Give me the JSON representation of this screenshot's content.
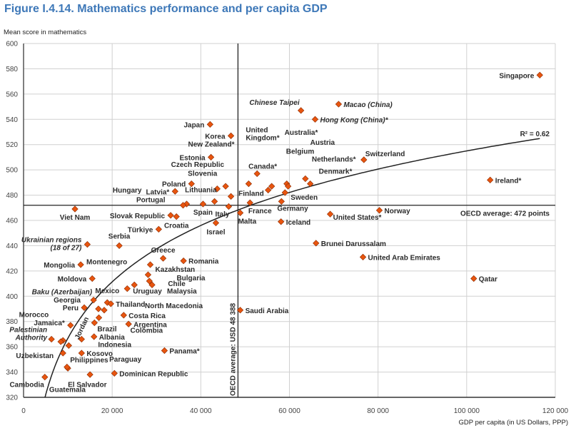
{
  "title": "Figure I.4.14. Mathematics performance and per capita GDP",
  "colors": {
    "title": "#3e78b8",
    "marker": "#e8550f",
    "marker_edge": "#8a2a00",
    "grid": "#d0d0d0"
  },
  "chart_data": {
    "type": "scatter",
    "title": "Figure I.4.14. Mathematics performance and per capita GDP",
    "xlabel": "GDP per capita (in US Dollars, PPP)",
    "ylabel": "Mean score in mathematics",
    "xlim": [
      0,
      120000
    ],
    "ylim": [
      320,
      600
    ],
    "xticks": [
      0,
      20000,
      40000,
      60000,
      80000,
      100000,
      120000
    ],
    "xtick_labels": [
      "0",
      "20 000",
      "40 000",
      "60 000",
      "80 000",
      "100 000",
      "120 000"
    ],
    "yticks": [
      320,
      340,
      360,
      380,
      400,
      420,
      440,
      460,
      480,
      500,
      520,
      540,
      560,
      580,
      600
    ],
    "grid": true,
    "trendline": {
      "type": "logarithmic",
      "label": "R² = 0.62"
    },
    "reference_lines": {
      "oecd_mean_score": 472,
      "oecd_mean_score_label": "OECD average: 472 points",
      "oecd_mean_gdp": 48388,
      "oecd_mean_gdp_label": "OECD average: USD 48 388"
    },
    "points": [
      {
        "name": "Singapore",
        "x": 116500,
        "y": 575
      },
      {
        "name": "Macao (China)",
        "x": 71100,
        "y": 552,
        "italic": true
      },
      {
        "name": "Chinese Taipei",
        "x": 62600,
        "y": 547,
        "italic": true
      },
      {
        "name": "Hong Kong (China)*",
        "x": 65800,
        "y": 540,
        "italic": true
      },
      {
        "name": "Japan",
        "x": 42100,
        "y": 536
      },
      {
        "name": "Korea",
        "x": 46800,
        "y": 527
      },
      {
        "name": "Estonia",
        "x": 42300,
        "y": 510
      },
      {
        "name": "Switzerland",
        "x": 76800,
        "y": 508
      },
      {
        "name": "Ireland*",
        "x": 105300,
        "y": 492
      },
      {
        "name": "Canada*",
        "x": 52700,
        "y": 497
      },
      {
        "name": "Netherlands*",
        "x": 63600,
        "y": 493
      },
      {
        "name": "Denmark*",
        "x": 64700,
        "y": 489
      },
      {
        "name": "Belgium",
        "x": 59400,
        "y": 489
      },
      {
        "name": "Austria",
        "x": 59700,
        "y": 487
      },
      {
        "name": "United\nKingdom*",
        "x": 50800,
        "y": 489
      },
      {
        "name": "Australia*",
        "x": 56000,
        "y": 487
      },
      {
        "name": "Czech Republic",
        "x": 45600,
        "y": 487
      },
      {
        "name": "Poland",
        "x": 37900,
        "y": 489
      },
      {
        "name": "Slovenia",
        "x": 43700,
        "y": 485
      },
      {
        "name": "Finland",
        "x": 55200,
        "y": 484
      },
      {
        "name": "Latvia*",
        "x": 34200,
        "y": 483
      },
      {
        "name": "Sweden",
        "x": 59000,
        "y": 482
      },
      {
        "name": "New Zealand*",
        "x": 46800,
        "y": 479
      },
      {
        "name": "Lithuania",
        "x": 43100,
        "y": 475
      },
      {
        "name": "Germany",
        "x": 58200,
        "y": 475
      },
      {
        "name": "France",
        "x": 51100,
        "y": 474
      },
      {
        "name": "Spain",
        "x": 40500,
        "y": 473
      },
      {
        "name": "Hungary",
        "x": 36800,
        "y": 473
      },
      {
        "name": "Portugal",
        "x": 36000,
        "y": 472
      },
      {
        "name": "Italy",
        "x": 46300,
        "y": 471
      },
      {
        "name": "Viet Nam",
        "x": 11600,
        "y": 469
      },
      {
        "name": "Norway",
        "x": 80300,
        "y": 468
      },
      {
        "name": "Malta",
        "x": 48900,
        "y": 466
      },
      {
        "name": "United States*",
        "x": 69200,
        "y": 465
      },
      {
        "name": "Slovak Republic",
        "x": 33200,
        "y": 464
      },
      {
        "name": "Croatia",
        "x": 34500,
        "y": 463
      },
      {
        "name": "Iceland",
        "x": 58100,
        "y": 459
      },
      {
        "name": "Israel",
        "x": 43400,
        "y": 458
      },
      {
        "name": "Türkiye",
        "x": 30500,
        "y": 453
      },
      {
        "name": "Brunei Darussalam",
        "x": 66000,
        "y": 442
      },
      {
        "name": "Ukrainian regions\n(18 of 27)",
        "x": 14400,
        "y": 441,
        "italic": true
      },
      {
        "name": "Serbia",
        "x": 21600,
        "y": 440
      },
      {
        "name": "United Arab Emirates",
        "x": 76600,
        "y": 431
      },
      {
        "name": "Greece",
        "x": 31500,
        "y": 430
      },
      {
        "name": "Romania",
        "x": 36100,
        "y": 428
      },
      {
        "name": "Kazakhstan",
        "x": 28600,
        "y": 425
      },
      {
        "name": "Mongolia",
        "x": 12900,
        "y": 425
      },
      {
        "name": "Bulgaria",
        "x": 28100,
        "y": 417
      },
      {
        "name": "Moldova",
        "x": 15500,
        "y": 414
      },
      {
        "name": "Qatar",
        "x": 101600,
        "y": 414
      },
      {
        "name": "Chile",
        "x": 28400,
        "y": 412
      },
      {
        "name": "Uruguay",
        "x": 25000,
        "y": 409
      },
      {
        "name": "Malaysia",
        "x": 29000,
        "y": 409
      },
      {
        "name": "Montenegro",
        "x": 23400,
        "y": 406
      },
      {
        "name": "Baku (Azerbaijan)",
        "x": 15800,
        "y": 397,
        "italic": true
      },
      {
        "name": "Mexico",
        "x": 18900,
        "y": 395
      },
      {
        "name": "Thailand",
        "x": 19700,
        "y": 394
      },
      {
        "name": "Peru",
        "x": 13700,
        "y": 391
      },
      {
        "name": "Georgia",
        "x": 16900,
        "y": 390
      },
      {
        "name": "Saudi Arabia",
        "x": 48900,
        "y": 389
      },
      {
        "name": "North Macedonia",
        "x": 18200,
        "y": 389
      },
      {
        "name": "Costa Rica",
        "x": 22600,
        "y": 385
      },
      {
        "name": "Colombia",
        "x": 17000,
        "y": 383
      },
      {
        "name": "Brazil",
        "x": 16000,
        "y": 379
      },
      {
        "name": "Argentina",
        "x": 23700,
        "y": 378
      },
      {
        "name": "Jamaica*",
        "x": 10600,
        "y": 377
      },
      {
        "name": "Albania",
        "x": 15900,
        "y": 368
      },
      {
        "name": "Palestinian\nAuthority",
        "x": 6300,
        "y": 366,
        "italic": true
      },
      {
        "name": "Indonesia",
        "x": 13100,
        "y": 366
      },
      {
        "name": "Morocco",
        "x": 8900,
        "y": 365
      },
      {
        "name": "Uzbekistan",
        "x": 8400,
        "y": 364
      },
      {
        "name": "Jordan",
        "x": 10200,
        "y": 361
      },
      {
        "name": "Panama*",
        "x": 31800,
        "y": 357
      },
      {
        "name": "Kosovo",
        "x": 13100,
        "y": 355
      },
      {
        "name": "Philippines",
        "x": 8900,
        "y": 355
      },
      {
        "name": "El Salvador",
        "x": 10000,
        "y": 343
      },
      {
        "name": "Guatemala",
        "x": 9800,
        "y": 344
      },
      {
        "name": "Dominican Republic",
        "x": 20500,
        "y": 339
      },
      {
        "name": "Paraguay",
        "x": 15000,
        "y": 338
      },
      {
        "name": "Cambodia",
        "x": 4800,
        "y": 336
      }
    ]
  }
}
